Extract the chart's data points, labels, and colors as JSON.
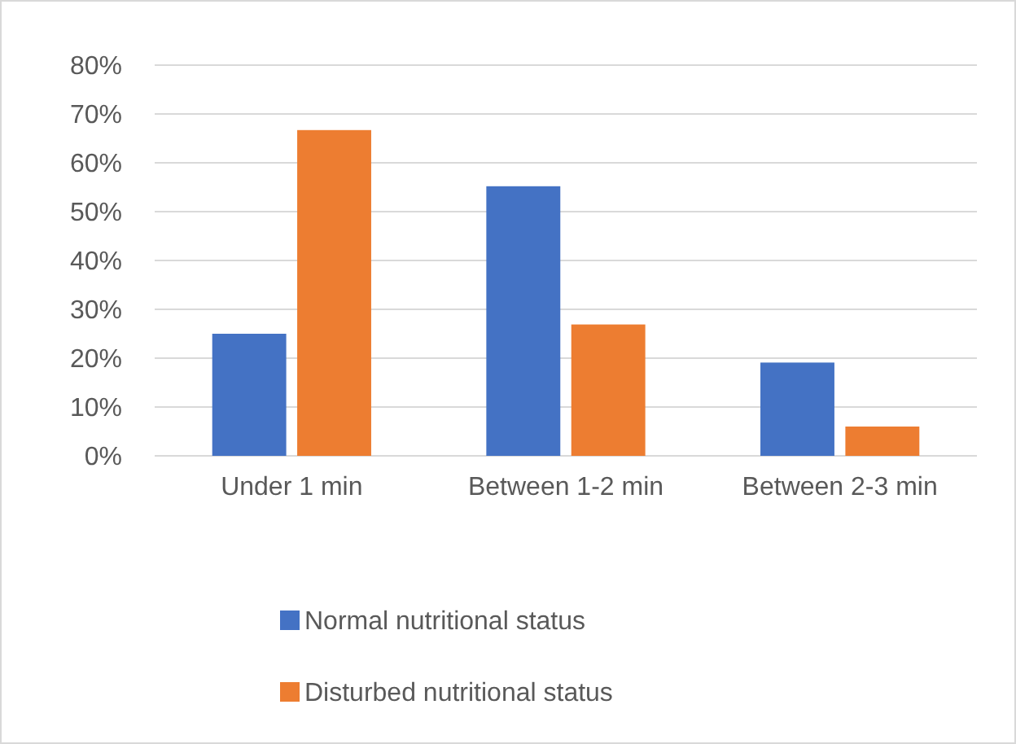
{
  "chart_data": {
    "type": "bar",
    "categories": [
      "Under 1 min",
      "Between 1-2 min",
      "Between 2-3 min"
    ],
    "series": [
      {
        "name": "Normal nutritional status",
        "color": "#4472c4",
        "values": [
          25,
          55.2,
          19.1
        ]
      },
      {
        "name": "Disturbed nutritional status",
        "color": "#ed7d31",
        "values": [
          66.7,
          26.9,
          6
        ]
      }
    ],
    "ylim": [
      0,
      80
    ],
    "yticks": [
      {
        "value": 0,
        "label": "0%"
      },
      {
        "value": 10,
        "label": "10%"
      },
      {
        "value": 20,
        "label": "20%"
      },
      {
        "value": 30,
        "label": "30%"
      },
      {
        "value": 40,
        "label": "40%"
      },
      {
        "value": 50,
        "label": "50%"
      },
      {
        "value": 60,
        "label": "60%"
      },
      {
        "value": 70,
        "label": "70%"
      },
      {
        "value": 80,
        "label": "80%"
      }
    ],
    "grid": "y",
    "legend": "bottom"
  }
}
